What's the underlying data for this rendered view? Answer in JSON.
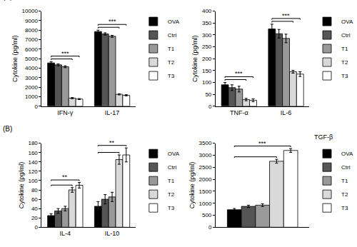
{
  "chart_data": [
    {
      "type": "bar",
      "title": "(A)",
      "y_label": "Cytokine (pg/ml)",
      "categories": [
        "IFN-γ",
        "IL-17"
      ],
      "series": [
        {
          "name": "OVA",
          "color": "#000000",
          "values": [
            4550,
            7850
          ],
          "errors": [
            120,
            150
          ]
        },
        {
          "name": "Ctrl",
          "color": "#555555",
          "values": [
            4350,
            7600
          ],
          "errors": [
            100,
            120
          ]
        },
        {
          "name": "T1",
          "color": "#999999",
          "values": [
            4150,
            7350
          ],
          "errors": [
            100,
            100
          ]
        },
        {
          "name": "T2",
          "color": "#d9d9d9",
          "values": [
            850,
            1250
          ],
          "errors": [
            60,
            60
          ]
        },
        {
          "name": "T3",
          "color": "#ffffff",
          "values": [
            750,
            1150
          ],
          "errors": [
            50,
            60
          ]
        }
      ],
      "ylim": [
        0,
        10000
      ],
      "yticks": [
        0,
        1000,
        2000,
        3000,
        4000,
        5000,
        6000,
        7000,
        8000,
        9000,
        10000
      ],
      "grid": false,
      "legend": "right",
      "annotations": [
        {
          "group": 0,
          "text": "***",
          "brackets": [
            [
              "OVA",
              "T2"
            ],
            [
              "OVA",
              "T3"
            ]
          ]
        },
        {
          "group": 1,
          "text": "***",
          "brackets": [
            [
              "OVA",
              "T2"
            ],
            [
              "OVA",
              "T3"
            ]
          ]
        }
      ]
    },
    {
      "type": "bar",
      "y_label": "Cytokine (pg/ml)",
      "categories": [
        "TNF-α",
        "IL-6"
      ],
      "series": [
        {
          "name": "OVA",
          "color": "#000000",
          "values": [
            90,
            325
          ],
          "errors": [
            10,
            20
          ]
        },
        {
          "name": "Ctrl",
          "color": "#555555",
          "values": [
            78,
            305
          ],
          "errors": [
            12,
            18
          ]
        },
        {
          "name": "T1",
          "color": "#999999",
          "values": [
            72,
            285
          ],
          "errors": [
            12,
            18
          ]
        },
        {
          "name": "T2",
          "color": "#d9d9d9",
          "values": [
            28,
            145
          ],
          "errors": [
            5,
            6
          ]
        },
        {
          "name": "T3",
          "color": "#ffffff",
          "values": [
            25,
            135
          ],
          "errors": [
            6,
            10
          ]
        }
      ],
      "ylim": [
        0,
        400
      ],
      "yticks": [
        0,
        50,
        100,
        150,
        200,
        250,
        300,
        350,
        400
      ],
      "grid": false,
      "legend": "right",
      "annotations": [
        {
          "group": 0,
          "text": "***",
          "brackets": [
            [
              "OVA",
              "T2"
            ],
            [
              "OVA",
              "T3"
            ]
          ]
        },
        {
          "group": 1,
          "text": "***",
          "brackets": [
            [
              "OVA",
              "T2"
            ],
            [
              "OVA",
              "T3"
            ]
          ]
        }
      ]
    },
    {
      "type": "bar",
      "title": "(B)",
      "y_label": "Cytokine (pg/ml)",
      "categories": [
        "IL-4",
        "IL-10"
      ],
      "series": [
        {
          "name": "OVA",
          "color": "#000000",
          "values": [
            25,
            45
          ],
          "errors": [
            4,
            10
          ]
        },
        {
          "name": "Ctrl",
          "color": "#555555",
          "values": [
            35,
            60
          ],
          "errors": [
            5,
            10
          ]
        },
        {
          "name": "T1",
          "color": "#999999",
          "values": [
            40,
            65
          ],
          "errors": [
            5,
            10
          ]
        },
        {
          "name": "T2",
          "color": "#d9d9d9",
          "values": [
            80,
            145
          ],
          "errors": [
            5,
            10
          ]
        },
        {
          "name": "T3",
          "color": "#ffffff",
          "values": [
            90,
            155
          ],
          "errors": [
            6,
            15
          ]
        }
      ],
      "ylim": [
        0,
        180
      ],
      "yticks": [
        0,
        20,
        40,
        60,
        80,
        100,
        120,
        140,
        160,
        180
      ],
      "grid": false,
      "legend": "right",
      "annotations": [
        {
          "group": 0,
          "text": "**",
          "brackets": [
            [
              "OVA",
              "T2"
            ],
            [
              "OVA",
              "T3"
            ]
          ]
        },
        {
          "group": 1,
          "text": "**",
          "brackets": [
            [
              "OVA",
              "T2"
            ],
            [
              "OVA",
              "T3"
            ]
          ]
        }
      ]
    },
    {
      "type": "bar",
      "title": "TGF-β",
      "y_label": "Cytokine (pg/ml)",
      "categories": [
        null
      ],
      "series": [
        {
          "name": "OVA",
          "color": "#000000",
          "values": [
            730
          ],
          "errors": [
            50
          ]
        },
        {
          "name": "Ctrl",
          "color": "#555555",
          "values": [
            870
          ],
          "errors": [
            50
          ]
        },
        {
          "name": "T1",
          "color": "#999999",
          "values": [
            920
          ],
          "errors": [
            60
          ]
        },
        {
          "name": "T2",
          "color": "#d9d9d9",
          "values": [
            2750
          ],
          "errors": [
            80
          ]
        },
        {
          "name": "T3",
          "color": "#ffffff",
          "values": [
            3200
          ],
          "errors": [
            80
          ]
        }
      ],
      "ylim": [
        0,
        3500
      ],
      "yticks": [
        0,
        500,
        1000,
        1500,
        2000,
        2500,
        3000,
        3500
      ],
      "grid": false,
      "legend": "right",
      "annotations": [
        {
          "group": 0,
          "text": "***",
          "brackets": [
            [
              "OVA",
              "T2"
            ],
            [
              "OVA",
              "T3"
            ]
          ]
        }
      ]
    }
  ]
}
